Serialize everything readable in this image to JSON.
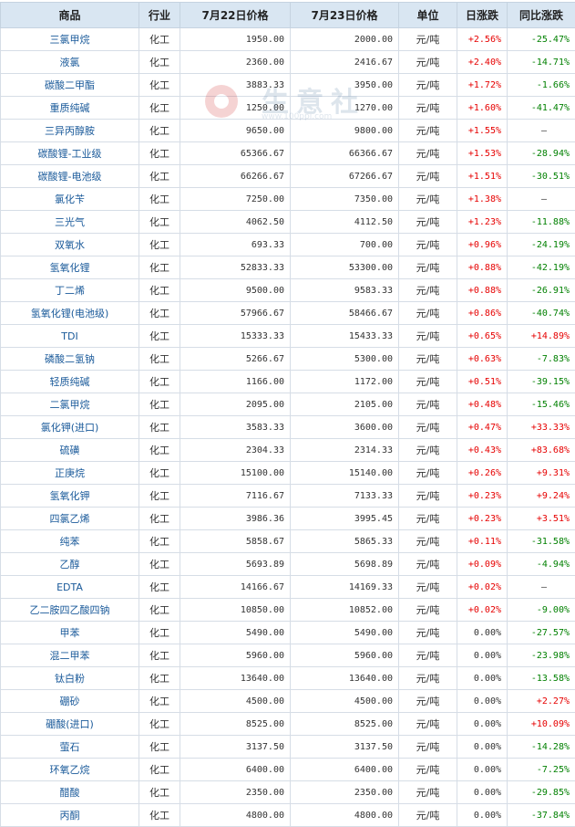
{
  "table": {
    "headers": {
      "name": "商品",
      "industry": "行业",
      "price_prev": "7月22日价格",
      "price_curr": "7月23日价格",
      "unit": "单位",
      "daily_change": "日涨跌",
      "yoy_change": "同比涨跌"
    },
    "rows": [
      {
        "name": "三氯甲烷",
        "industry": "化工",
        "p1": "1950.00",
        "p2": "2000.00",
        "unit": "元/吨",
        "day": "+2.56%",
        "yoy": "-25.47%"
      },
      {
        "name": "液氯",
        "industry": "化工",
        "p1": "2360.00",
        "p2": "2416.67",
        "unit": "元/吨",
        "day": "+2.40%",
        "yoy": "-14.71%"
      },
      {
        "name": "碳酸二甲酯",
        "industry": "化工",
        "p1": "3883.33",
        "p2": "3950.00",
        "unit": "元/吨",
        "day": "+1.72%",
        "yoy": "-1.66%"
      },
      {
        "name": "重质纯碱",
        "industry": "化工",
        "p1": "1250.00",
        "p2": "1270.00",
        "unit": "元/吨",
        "day": "+1.60%",
        "yoy": "-41.47%"
      },
      {
        "name": "三异丙醇胺",
        "industry": "化工",
        "p1": "9650.00",
        "p2": "9800.00",
        "unit": "元/吨",
        "day": "+1.55%",
        "yoy": "—"
      },
      {
        "name": "碳酸锂-工业级",
        "industry": "化工",
        "p1": "65366.67",
        "p2": "66366.67",
        "unit": "元/吨",
        "day": "+1.53%",
        "yoy": "-28.94%"
      },
      {
        "name": "碳酸锂-电池级",
        "industry": "化工",
        "p1": "66266.67",
        "p2": "67266.67",
        "unit": "元/吨",
        "day": "+1.51%",
        "yoy": "-30.51%"
      },
      {
        "name": "氯化苄",
        "industry": "化工",
        "p1": "7250.00",
        "p2": "7350.00",
        "unit": "元/吨",
        "day": "+1.38%",
        "yoy": "—"
      },
      {
        "name": "三光气",
        "industry": "化工",
        "p1": "4062.50",
        "p2": "4112.50",
        "unit": "元/吨",
        "day": "+1.23%",
        "yoy": "-11.88%"
      },
      {
        "name": "双氧水",
        "industry": "化工",
        "p1": "693.33",
        "p2": "700.00",
        "unit": "元/吨",
        "day": "+0.96%",
        "yoy": "-24.19%"
      },
      {
        "name": "氢氧化锂",
        "industry": "化工",
        "p1": "52833.33",
        "p2": "53300.00",
        "unit": "元/吨",
        "day": "+0.88%",
        "yoy": "-42.19%"
      },
      {
        "name": "丁二烯",
        "industry": "化工",
        "p1": "9500.00",
        "p2": "9583.33",
        "unit": "元/吨",
        "day": "+0.88%",
        "yoy": "-26.91%"
      },
      {
        "name": "氢氧化锂(电池级)",
        "industry": "化工",
        "p1": "57966.67",
        "p2": "58466.67",
        "unit": "元/吨",
        "day": "+0.86%",
        "yoy": "-40.74%"
      },
      {
        "name": "TDI",
        "industry": "化工",
        "p1": "15333.33",
        "p2": "15433.33",
        "unit": "元/吨",
        "day": "+0.65%",
        "yoy": "+14.89%"
      },
      {
        "name": "磷酸二氢钠",
        "industry": "化工",
        "p1": "5266.67",
        "p2": "5300.00",
        "unit": "元/吨",
        "day": "+0.63%",
        "yoy": "-7.83%"
      },
      {
        "name": "轻质纯碱",
        "industry": "化工",
        "p1": "1166.00",
        "p2": "1172.00",
        "unit": "元/吨",
        "day": "+0.51%",
        "yoy": "-39.15%"
      },
      {
        "name": "二氯甲烷",
        "industry": "化工",
        "p1": "2095.00",
        "p2": "2105.00",
        "unit": "元/吨",
        "day": "+0.48%",
        "yoy": "-15.46%"
      },
      {
        "name": "氯化钾(进口)",
        "industry": "化工",
        "p1": "3583.33",
        "p2": "3600.00",
        "unit": "元/吨",
        "day": "+0.47%",
        "yoy": "+33.33%"
      },
      {
        "name": "硫磺",
        "industry": "化工",
        "p1": "2304.33",
        "p2": "2314.33",
        "unit": "元/吨",
        "day": "+0.43%",
        "yoy": "+83.68%"
      },
      {
        "name": "正庚烷",
        "industry": "化工",
        "p1": "15100.00",
        "p2": "15140.00",
        "unit": "元/吨",
        "day": "+0.26%",
        "yoy": "+9.31%"
      },
      {
        "name": "氢氧化钾",
        "industry": "化工",
        "p1": "7116.67",
        "p2": "7133.33",
        "unit": "元/吨",
        "day": "+0.23%",
        "yoy": "+9.24%"
      },
      {
        "name": "四氯乙烯",
        "industry": "化工",
        "p1": "3986.36",
        "p2": "3995.45",
        "unit": "元/吨",
        "day": "+0.23%",
        "yoy": "+3.51%"
      },
      {
        "name": "纯苯",
        "industry": "化工",
        "p1": "5858.67",
        "p2": "5865.33",
        "unit": "元/吨",
        "day": "+0.11%",
        "yoy": "-31.58%"
      },
      {
        "name": "乙醇",
        "industry": "化工",
        "p1": "5693.89",
        "p2": "5698.89",
        "unit": "元/吨",
        "day": "+0.09%",
        "yoy": "-4.94%"
      },
      {
        "name": "EDTA",
        "industry": "化工",
        "p1": "14166.67",
        "p2": "14169.33",
        "unit": "元/吨",
        "day": "+0.02%",
        "yoy": "—"
      },
      {
        "name": "乙二胺四乙酸四钠",
        "industry": "化工",
        "p1": "10850.00",
        "p2": "10852.00",
        "unit": "元/吨",
        "day": "+0.02%",
        "yoy": "-9.00%"
      },
      {
        "name": "甲苯",
        "industry": "化工",
        "p1": "5490.00",
        "p2": "5490.00",
        "unit": "元/吨",
        "day": "0.00%",
        "yoy": "-27.57%"
      },
      {
        "name": "混二甲苯",
        "industry": "化工",
        "p1": "5960.00",
        "p2": "5960.00",
        "unit": "元/吨",
        "day": "0.00%",
        "yoy": "-23.98%"
      },
      {
        "name": "钛白粉",
        "industry": "化工",
        "p1": "13640.00",
        "p2": "13640.00",
        "unit": "元/吨",
        "day": "0.00%",
        "yoy": "-13.58%"
      },
      {
        "name": "硼砂",
        "industry": "化工",
        "p1": "4500.00",
        "p2": "4500.00",
        "unit": "元/吨",
        "day": "0.00%",
        "yoy": "+2.27%"
      },
      {
        "name": "硼酸(进口)",
        "industry": "化工",
        "p1": "8525.00",
        "p2": "8525.00",
        "unit": "元/吨",
        "day": "0.00%",
        "yoy": "+10.09%"
      },
      {
        "name": "萤石",
        "industry": "化工",
        "p1": "3137.50",
        "p2": "3137.50",
        "unit": "元/吨",
        "day": "0.00%",
        "yoy": "-14.28%"
      },
      {
        "name": "环氧乙烷",
        "industry": "化工",
        "p1": "6400.00",
        "p2": "6400.00",
        "unit": "元/吨",
        "day": "0.00%",
        "yoy": "-7.25%"
      },
      {
        "name": "醋酸",
        "industry": "化工",
        "p1": "2350.00",
        "p2": "2350.00",
        "unit": "元/吨",
        "day": "0.00%",
        "yoy": "-29.85%"
      },
      {
        "name": "丙酮",
        "industry": "化工",
        "p1": "4800.00",
        "p2": "4800.00",
        "unit": "元/吨",
        "day": "0.00%",
        "yoy": "-37.84%"
      }
    ]
  },
  "watermark": {
    "text": "生意社",
    "sub": "www.100ppi.com",
    "icon": "logo-circle-icon",
    "color": "#6a8cad"
  },
  "colors": {
    "header_bg": "#d9e6f2",
    "up": "#e60000",
    "down": "#008000",
    "name_link": "#1a5a9a"
  }
}
